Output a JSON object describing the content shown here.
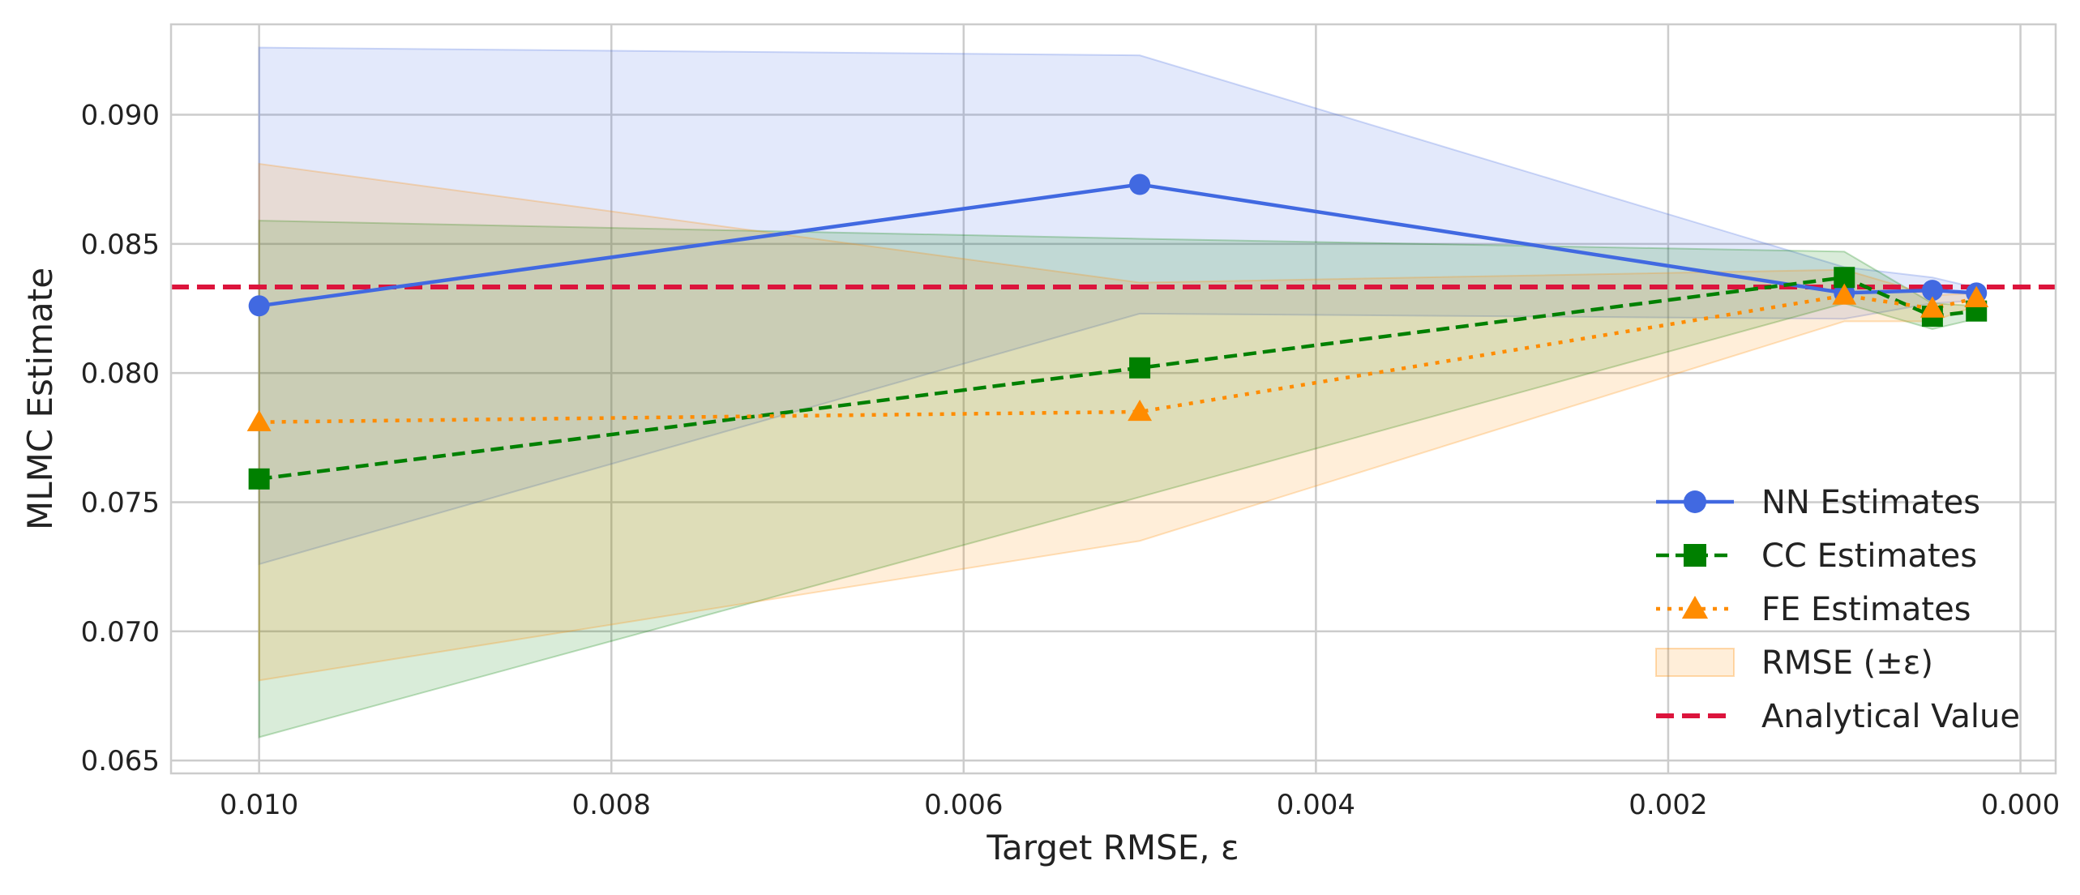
{
  "chart_data": {
    "type": "line",
    "title": "",
    "xlabel": "Target RMSE, ε",
    "ylabel": "MLMC Estimate",
    "x_reversed": true,
    "xlim": [
      0.0105,
      -0.0002
    ],
    "ylim": [
      0.0645,
      0.0935
    ],
    "xticks": [
      0.01,
      0.008,
      0.006,
      0.004,
      0.002,
      0.0
    ],
    "xtick_labels": [
      "0.010",
      "0.008",
      "0.006",
      "0.004",
      "0.002",
      "0.000"
    ],
    "yticks": [
      0.065,
      0.07,
      0.075,
      0.08,
      0.085,
      0.09
    ],
    "ytick_labels": [
      "0.065",
      "0.070",
      "0.075",
      "0.080",
      "0.085",
      "0.090"
    ],
    "grid": true,
    "legend_position": "lower-right",
    "x": [
      0.01,
      0.005,
      0.001,
      0.0005,
      0.00025
    ],
    "series": [
      {
        "name": "NN Estimates",
        "values": [
          0.0826,
          0.0873,
          0.0831,
          0.0832,
          0.0831
        ],
        "color": "#4169e1",
        "linestyle": "solid",
        "marker": "circle"
      },
      {
        "name": "CC Estimates",
        "values": [
          0.0759,
          0.0802,
          0.0837,
          0.0822,
          0.0824
        ],
        "color": "#008000",
        "linestyle": "dashed",
        "marker": "square"
      },
      {
        "name": "FE Estimates",
        "values": [
          0.0781,
          0.0785,
          0.083,
          0.0825,
          0.0829
        ],
        "color": "#ff8c00",
        "linestyle": "dotted",
        "marker": "triangle"
      }
    ],
    "bands": [
      {
        "series": "NN Estimates",
        "lower": [
          0.0726,
          0.0823,
          0.0821,
          0.0827,
          0.0828
        ],
        "upper": [
          0.0926,
          0.0923,
          0.0841,
          0.0837,
          0.0833
        ],
        "color": "#4169e1"
      },
      {
        "series": "CC Estimates",
        "lower": [
          0.0659,
          0.0752,
          0.0827,
          0.0817,
          0.0821
        ],
        "upper": [
          0.0859,
          0.0852,
          0.0847,
          0.0827,
          0.0826
        ],
        "color": "#008000"
      },
      {
        "series": "FE Estimates",
        "lower": [
          0.0681,
          0.0735,
          0.082,
          0.082,
          0.0826
        ],
        "upper": [
          0.0881,
          0.0835,
          0.084,
          0.083,
          0.0831
        ],
        "color": "#ff8c00"
      }
    ],
    "band_legend_label": "RMSE (±ε)",
    "reference_line": {
      "name": "Analytical Value",
      "value": 0.08333,
      "color": "#dc143c",
      "linestyle": "dashed"
    },
    "legend_entries": [
      "NN Estimates",
      "CC Estimates",
      "FE Estimates",
      "RMSE (±ε)",
      "Analytical Value"
    ]
  }
}
